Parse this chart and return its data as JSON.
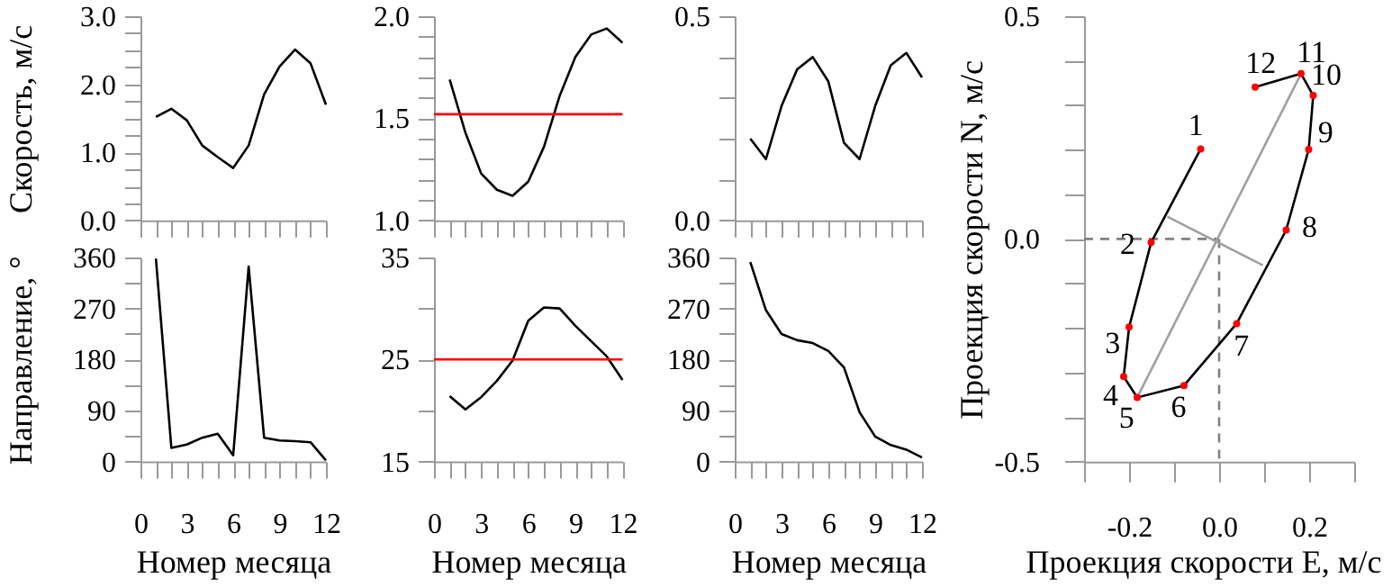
{
  "chart_data": [
    {
      "type": "line",
      "ylabel": "Скорость, м/с",
      "tick_labels": "y",
      "xlim": [
        0,
        12
      ],
      "xticks": [
        0,
        {
          "value": 1,
          "label": null
        },
        {
          "value": 2,
          "label": null
        },
        3,
        {
          "value": 4,
          "label": null
        },
        {
          "value": 5,
          "label": null
        },
        6,
        {
          "value": 7,
          "label": null
        },
        {
          "value": 8,
          "label": null
        },
        9,
        {
          "value": 10,
          "label": null
        },
        {
          "value": 11,
          "label": null
        },
        12
      ],
      "ylim": [
        0,
        3
      ],
      "yticks": [
        {
          "value": 0,
          "label": "0.0"
        },
        {
          "value": 0.25,
          "label": null
        },
        {
          "value": 0.5,
          "label": null
        },
        {
          "value": 0.75,
          "label": null
        },
        {
          "value": 1,
          "label": "1.0"
        },
        {
          "value": 1.25,
          "label": null
        },
        {
          "value": 1.5,
          "label": null
        },
        {
          "value": 1.75,
          "label": null
        },
        {
          "value": 2,
          "label": "2.0"
        },
        {
          "value": 2.25,
          "label": null
        },
        {
          "value": 2.5,
          "label": null
        },
        {
          "value": 2.75,
          "label": null
        },
        {
          "value": 3,
          "label": "3.0"
        }
      ],
      "x": [
        1,
        2,
        3,
        4,
        5,
        6,
        7,
        8,
        9,
        10,
        11,
        12
      ],
      "values": [
        1.52,
        1.64,
        1.47,
        1.1,
        0.93,
        0.77,
        1.1,
        1.85,
        2.26,
        2.51,
        2.31,
        1.7
      ],
      "color": "#000000"
    },
    {
      "type": "line",
      "tick_labels": "y",
      "xlim": [
        0,
        12
      ],
      "xticks": [
        0,
        {
          "value": 1,
          "label": null
        },
        {
          "value": 2,
          "label": null
        },
        3,
        {
          "value": 4,
          "label": null
        },
        {
          "value": 5,
          "label": null
        },
        6,
        {
          "value": 7,
          "label": null
        },
        {
          "value": 8,
          "label": null
        },
        9,
        {
          "value": 10,
          "label": null
        },
        {
          "value": 11,
          "label": null
        },
        12
      ],
      "ylim": [
        1,
        2
      ],
      "yticks": [
        {
          "value": 1,
          "label": "1.0"
        },
        {
          "value": 1.1,
          "label": null
        },
        {
          "value": 1.2,
          "label": null
        },
        {
          "value": 1.3,
          "label": null
        },
        {
          "value": 1.4,
          "label": null
        },
        1.5,
        {
          "value": 1.6,
          "label": null
        },
        {
          "value": 1.7,
          "label": null
        },
        {
          "value": 1.8,
          "label": null
        },
        {
          "value": 1.9,
          "label": null
        },
        {
          "value": 2,
          "label": "2.0"
        }
      ],
      "x": [
        1,
        2,
        3,
        4,
        5,
        6,
        7,
        8,
        9,
        10,
        11,
        12
      ],
      "values": [
        1.69,
        1.43,
        1.23,
        1.15,
        1.12,
        1.19,
        1.36,
        1.61,
        1.8,
        1.91,
        1.94,
        1.87
      ],
      "color": "#000000",
      "ref_lines": [
        {
          "axis": "y",
          "value": 1.52,
          "color": "#ff0000"
        }
      ]
    },
    {
      "type": "line",
      "tick_labels": "y",
      "xlim": [
        0,
        12
      ],
      "xticks": [
        0,
        {
          "value": 1,
          "label": null
        },
        {
          "value": 2,
          "label": null
        },
        3,
        {
          "value": 4,
          "label": null
        },
        {
          "value": 5,
          "label": null
        },
        6,
        {
          "value": 7,
          "label": null
        },
        {
          "value": 8,
          "label": null
        },
        9,
        {
          "value": 10,
          "label": null
        },
        {
          "value": 11,
          "label": null
        },
        12
      ],
      "ylim": [
        0,
        0.5
      ],
      "yticks": [
        {
          "value": 0,
          "label": "0.0"
        },
        {
          "value": 0.1,
          "label": null
        },
        {
          "value": 0.2,
          "label": null
        },
        {
          "value": 0.3,
          "label": null
        },
        {
          "value": 0.4,
          "label": null
        },
        0.5
      ],
      "x": [
        1,
        2,
        3,
        4,
        5,
        6,
        7,
        8,
        9,
        10,
        11,
        12
      ],
      "values": [
        0.2,
        0.15,
        0.28,
        0.37,
        0.4,
        0.34,
        0.19,
        0.15,
        0.28,
        0.38,
        0.41,
        0.35
      ],
      "color": "#000000"
    },
    {
      "type": "line",
      "ylabel": "Направление, °",
      "xlabel": "Номер месяца",
      "xlim": [
        0,
        12
      ],
      "xticks": [
        0,
        {
          "value": 1,
          "label": null
        },
        {
          "value": 2,
          "label": null
        },
        3,
        {
          "value": 4,
          "label": null
        },
        {
          "value": 5,
          "label": null
        },
        6,
        {
          "value": 7,
          "label": null
        },
        {
          "value": 8,
          "label": null
        },
        9,
        {
          "value": 10,
          "label": null
        },
        {
          "value": 11,
          "label": null
        },
        12
      ],
      "ylim": [
        0,
        360
      ],
      "yticks": [
        0,
        {
          "value": 45,
          "label": null
        },
        90,
        {
          "value": 135,
          "label": null
        },
        180,
        {
          "value": 225,
          "label": null
        },
        270,
        {
          "value": 315,
          "label": null
        },
        360
      ],
      "x": [
        1,
        2,
        3,
        4,
        5,
        6,
        7,
        8,
        9,
        10,
        11,
        12
      ],
      "values": [
        358,
        24,
        30,
        42,
        49,
        11,
        344,
        42,
        37,
        36,
        34,
        2
      ],
      "color": "#000000"
    },
    {
      "type": "line",
      "xlabel": "Номер месяца",
      "xlim": [
        0,
        12
      ],
      "xticks": [
        0,
        {
          "value": 1,
          "label": null
        },
        {
          "value": 2,
          "label": null
        },
        3,
        {
          "value": 4,
          "label": null
        },
        {
          "value": 5,
          "label": null
        },
        6,
        {
          "value": 7,
          "label": null
        },
        {
          "value": 8,
          "label": null
        },
        9,
        {
          "value": 10,
          "label": null
        },
        {
          "value": 11,
          "label": null
        },
        12
      ],
      "ylim": [
        15,
        35
      ],
      "yticks": [
        15,
        {
          "value": 20,
          "label": null
        },
        25,
        {
          "value": 30,
          "label": null
        },
        35
      ],
      "x": [
        1,
        2,
        3,
        4,
        5,
        6,
        7,
        8,
        9,
        10,
        11,
        12
      ],
      "values": [
        21.4,
        20.1,
        21.3,
        22.9,
        24.9,
        28.8,
        30.1,
        30,
        28.3,
        26.8,
        25.3,
        23
      ],
      "color": "#000000",
      "ref_lines": [
        {
          "axis": "y",
          "value": 25,
          "color": "#ff0000"
        }
      ]
    },
    {
      "type": "line",
      "xlabel": "Номер месяца",
      "xlim": [
        0,
        12
      ],
      "xticks": [
        0,
        {
          "value": 1,
          "label": null
        },
        {
          "value": 2,
          "label": null
        },
        3,
        {
          "value": 4,
          "label": null
        },
        {
          "value": 5,
          "label": null
        },
        6,
        {
          "value": 7,
          "label": null
        },
        {
          "value": 8,
          "label": null
        },
        9,
        {
          "value": 10,
          "label": null
        },
        {
          "value": 11,
          "label": null
        },
        12
      ],
      "ylim": [
        0,
        360
      ],
      "yticks": [
        0,
        {
          "value": 45,
          "label": null
        },
        90,
        {
          "value": 135,
          "label": null
        },
        180,
        {
          "value": 225,
          "label": null
        },
        270,
        {
          "value": 315,
          "label": null
        },
        360
      ],
      "x": [
        1,
        2,
        3,
        4,
        5,
        6,
        7,
        8,
        9,
        10,
        11,
        12
      ],
      "values": [
        352,
        267,
        225,
        214,
        209,
        195,
        166,
        87,
        44,
        29,
        21,
        7
      ],
      "color": "#000000"
    },
    {
      "type": "line",
      "xlabel": "Проекция скорости E, м/с",
      "ylabel": "Проекция скорости N, м/с",
      "xlim": [
        -0.3,
        0.3
      ],
      "xticks": [
        {
          "value": -0.3,
          "label": null
        },
        -0.2,
        {
          "value": -0.1,
          "label": null
        },
        {
          "value": 0,
          "label": "0.0"
        },
        {
          "value": 0.1,
          "label": null
        },
        0.2,
        {
          "value": 0.3,
          "label": null
        }
      ],
      "ylim": [
        -0.5,
        0.5
      ],
      "yticks": [
        -0.5,
        {
          "value": -0.4,
          "label": null
        },
        {
          "value": -0.3,
          "label": null
        },
        {
          "value": -0.2,
          "label": null
        },
        {
          "value": -0.1,
          "label": null
        },
        {
          "value": 0,
          "label": "0.0"
        },
        {
          "value": 0.1,
          "label": null
        },
        {
          "value": 0.2,
          "label": null
        },
        {
          "value": 0.3,
          "label": null
        },
        {
          "value": 0.4,
          "label": null
        },
        0.5
      ],
      "series": [
        {
          "type": "line",
          "x": [
            -0.3,
            0
          ],
          "values": [
            0,
            0
          ],
          "color": "#808080",
          "line_style": "dashed"
        },
        {
          "type": "line",
          "x": [
            0,
            0
          ],
          "values": [
            0,
            -0.5
          ],
          "color": "#808080",
          "line_style": "dashed"
        },
        {
          "type": "line",
          "x": [
            -0.182,
            0.182
          ],
          "values": [
            -0.356,
            0.371
          ],
          "color": "#a0a0a0"
        },
        {
          "type": "line",
          "x": [
            -0.115,
            0.097
          ],
          "values": [
            0.05,
            -0.059
          ],
          "color": "#a0a0a0"
        },
        {
          "type": "line",
          "x": [
            -0.041,
            -0.151,
            -0.2,
            -0.212,
            -0.182,
            -0.078,
            0.039,
            0.149,
            0.199,
            0.209,
            0.182,
            0.08
          ],
          "values": [
            0.202,
            -0.008,
            -0.198,
            -0.309,
            -0.356,
            -0.329,
            -0.19,
            0.02,
            0.201,
            0.322,
            0.371,
            0.341
          ],
          "color": "#000000"
        },
        {
          "type": "scatter",
          "x": [
            -0.041,
            -0.151,
            -0.2,
            -0.212,
            -0.182,
            -0.078,
            0.039,
            0.149,
            0.199,
            0.209,
            0.182,
            0.08
          ],
          "values": [
            0.202,
            -0.008,
            -0.198,
            -0.309,
            -0.356,
            -0.329,
            -0.19,
            0.02,
            0.201,
            0.322,
            0.371,
            0.341
          ],
          "color": "#ff0000"
        }
      ],
      "annotations": [
        {
          "text": "1",
          "x": -0.041,
          "y": 0.202
        },
        {
          "text": "2",
          "x": -0.151,
          "y": -0.008
        },
        {
          "text": "3",
          "x": -0.2,
          "y": -0.198
        },
        {
          "text": "4",
          "x": -0.212,
          "y": -0.309
        },
        {
          "text": "5",
          "x": -0.182,
          "y": -0.356
        },
        {
          "text": "6",
          "x": -0.078,
          "y": -0.329
        },
        {
          "text": "7",
          "x": 0.039,
          "y": -0.19
        },
        {
          "text": "8",
          "x": 0.149,
          "y": 0.02
        },
        {
          "text": "9",
          "x": 0.199,
          "y": 0.201
        },
        {
          "text": "10",
          "x": 0.209,
          "y": 0.322
        },
        {
          "text": "11",
          "x": 0.182,
          "y": 0.371
        },
        {
          "text": "12",
          "x": 0.08,
          "y": 0.341
        }
      ]
    }
  ]
}
